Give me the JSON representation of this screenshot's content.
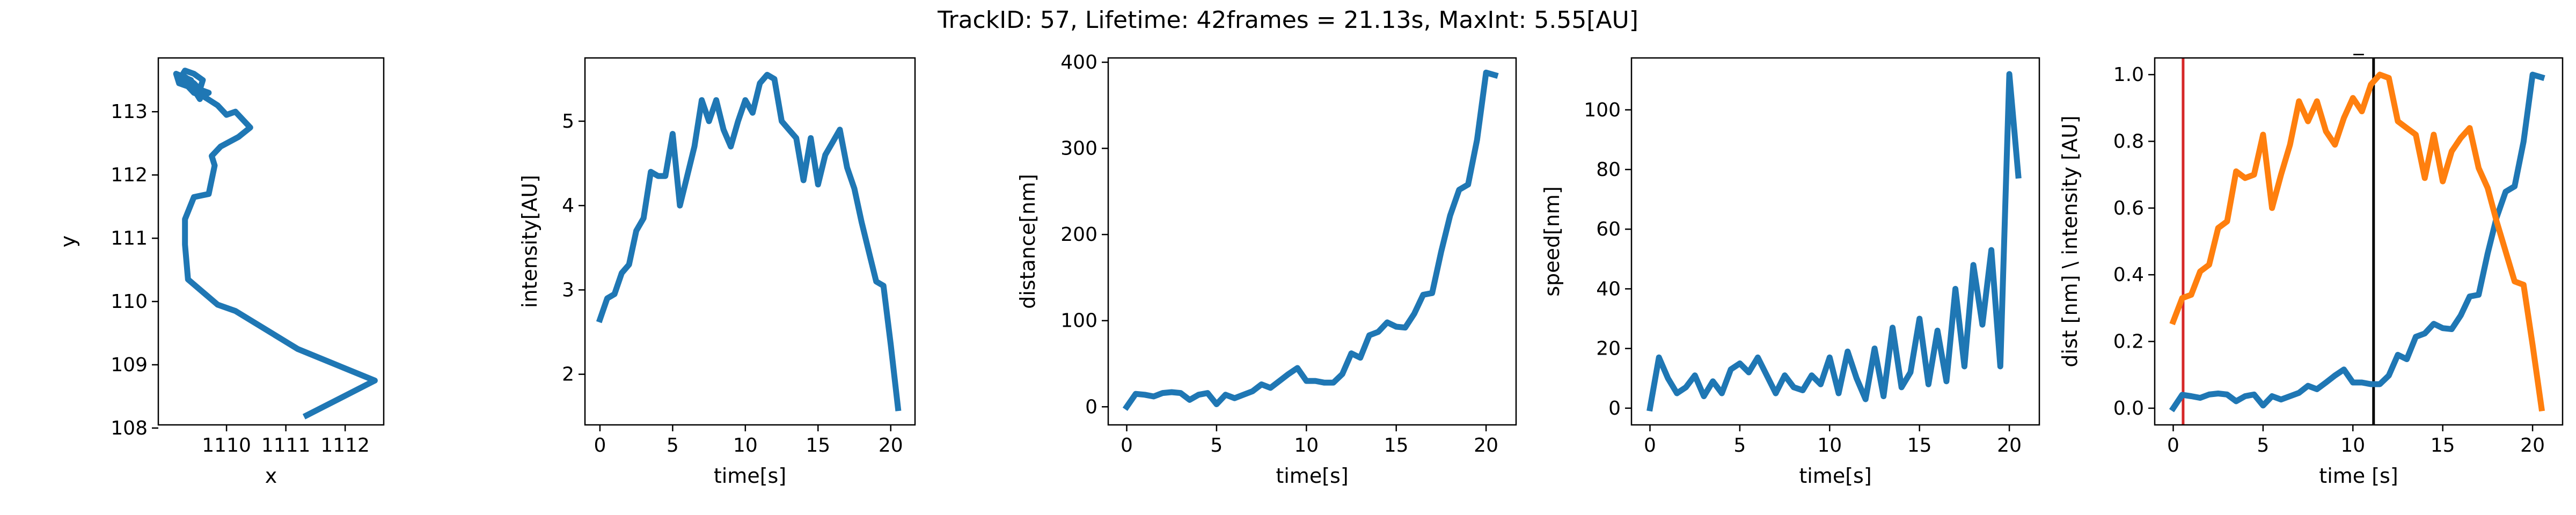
{
  "suptitle": "TrackID: 57, Lifetime: 42frames = 21.13s, MaxInt: 5.55[AU]",
  "colors": {
    "blue": "#1f77b4",
    "orange": "#ff7f0e",
    "red": "#d62728",
    "black": "#000000"
  },
  "chart_data": [
    {
      "type": "line",
      "title": "",
      "xlabel": "x",
      "ylabel": "y",
      "xlim": [
        1108.85,
        1112.65
      ],
      "ylim": [
        108.05,
        113.85
      ],
      "xticks": [
        1110,
        1111,
        1112
      ],
      "xtick_labels": [
        "1110",
        "1111",
        "1112"
      ],
      "yticks": [
        108,
        109,
        110,
        111,
        112,
        113
      ],
      "ytick_labels": [
        "108",
        "109",
        "110",
        "111",
        "112",
        "113"
      ],
      "grid": false,
      "series": [
        {
          "color": "#1f77b4",
          "x": [
            1111.35,
            1112.5,
            1111.2,
            1110.15,
            1109.85,
            1109.35,
            1109.3,
            1109.3,
            1109.45,
            1109.7,
            1109.8,
            1109.75,
            1109.9,
            1110.2,
            1110.4,
            1110.15,
            1110.0,
            1109.85,
            1109.6,
            1109.45,
            1109.35,
            1109.2,
            1109.15,
            1109.4,
            1109.55,
            1109.35,
            1109.25,
            1109.3,
            1109.4,
            1109.5,
            1109.6,
            1109.7,
            1109.4,
            1109.25,
            1109.3,
            1109.45,
            1109.55,
            1109.6,
            1109.45,
            1109.3,
            1109.2,
            1109.25
          ],
          "y": [
            108.2,
            108.75,
            109.25,
            109.85,
            109.95,
            110.35,
            110.9,
            111.3,
            111.65,
            111.7,
            112.15,
            112.3,
            112.45,
            112.6,
            112.75,
            113.0,
            112.95,
            113.1,
            113.25,
            113.3,
            113.4,
            113.45,
            113.6,
            113.5,
            113.2,
            113.5,
            113.55,
            113.45,
            113.35,
            113.3,
            113.25,
            113.3,
            113.4,
            113.5,
            113.55,
            113.45,
            113.35,
            113.5,
            113.6,
            113.65,
            113.5,
            113.45
          ]
        }
      ]
    },
    {
      "type": "line",
      "title": "",
      "xlabel": "time[s]",
      "ylabel": "intensity[AU]",
      "xlim": [
        -1.03,
        21.67
      ],
      "ylim": [
        1.4,
        5.75
      ],
      "xticks": [
        0,
        5,
        10,
        15,
        20
      ],
      "xtick_labels": [
        "0",
        "5",
        "10",
        "15",
        "20"
      ],
      "yticks": [
        2,
        3,
        4,
        5
      ],
      "ytick_labels": [
        "2",
        "3",
        "4",
        "5"
      ],
      "grid": false,
      "series": [
        {
          "color": "#1f77b4",
          "x": [
            0,
            0.5,
            1.0,
            1.5,
            2.0,
            2.5,
            3.0,
            3.5,
            4.0,
            4.5,
            5.0,
            5.5,
            6.0,
            6.5,
            7.0,
            7.5,
            8.0,
            8.5,
            9.0,
            9.5,
            10.0,
            10.5,
            11.0,
            11.5,
            12.0,
            12.5,
            13.0,
            13.5,
            14.0,
            14.5,
            15.0,
            15.5,
            16.0,
            16.5,
            17.0,
            17.5,
            18.0,
            18.5,
            19.0,
            19.5,
            20.0,
            20.5
          ],
          "y": [
            2.65,
            2.9,
            2.95,
            3.2,
            3.3,
            3.7,
            3.85,
            4.4,
            4.35,
            4.35,
            4.85,
            4.0,
            4.35,
            4.7,
            5.25,
            5.0,
            5.25,
            4.9,
            4.7,
            5.0,
            5.25,
            5.1,
            5.45,
            5.55,
            5.5,
            5.0,
            4.9,
            4.8,
            4.3,
            4.8,
            4.25,
            4.6,
            4.75,
            4.9,
            4.45,
            4.2,
            3.8,
            3.45,
            3.1,
            3.05,
            2.35,
            1.6
          ]
        }
      ]
    },
    {
      "type": "line",
      "title": "",
      "xlabel": "time[s]",
      "ylabel": "distance[nm]",
      "xlim": [
        -1.03,
        21.67
      ],
      "ylim": [
        -21,
        405
      ],
      "xticks": [
        0,
        5,
        10,
        15,
        20
      ],
      "xtick_labels": [
        "0",
        "5",
        "10",
        "15",
        "20"
      ],
      "yticks": [
        0,
        100,
        200,
        300,
        400
      ],
      "ytick_labels": [
        "0",
        "100",
        "200",
        "300",
        "400"
      ],
      "grid": false,
      "series": [
        {
          "color": "#1f77b4",
          "x": [
            0,
            0.5,
            1.0,
            1.5,
            2.0,
            2.5,
            3.0,
            3.5,
            4.0,
            4.5,
            5.0,
            5.5,
            6.0,
            6.5,
            7.0,
            7.5,
            8.0,
            8.5,
            9.0,
            9.5,
            10.0,
            10.5,
            11.0,
            11.5,
            12.0,
            12.5,
            13.0,
            13.5,
            14.0,
            14.5,
            15.0,
            15.5,
            16.0,
            16.5,
            17.0,
            17.5,
            18.0,
            18.5,
            19.0,
            19.5,
            20.0,
            20.5
          ],
          "y": [
            0,
            15,
            14,
            12,
            16,
            17,
            16,
            8,
            14,
            16,
            3,
            14,
            10,
            14,
            18,
            26,
            22,
            30,
            38,
            45,
            30,
            30,
            28,
            28,
            38,
            62,
            57,
            83,
            87,
            98,
            93,
            92,
            108,
            130,
            132,
            180,
            222,
            252,
            258,
            310,
            388,
            385
          ]
        }
      ]
    },
    {
      "type": "line",
      "title": "",
      "xlabel": "time[s]",
      "ylabel": "speed[nm]",
      "xlim": [
        -1.03,
        21.67
      ],
      "ylim": [
        -5.6,
        117.4
      ],
      "xticks": [
        0,
        5,
        10,
        15,
        20
      ],
      "xtick_labels": [
        "0",
        "5",
        "10",
        "15",
        "20"
      ],
      "yticks": [
        0,
        20,
        40,
        60,
        80,
        100
      ],
      "ytick_labels": [
        "0",
        "20",
        "40",
        "60",
        "80",
        "100"
      ],
      "grid": false,
      "series": [
        {
          "color": "#1f77b4",
          "x": [
            0,
            0.5,
            1.0,
            1.5,
            2.0,
            2.5,
            3.0,
            3.5,
            4.0,
            4.5,
            5.0,
            5.5,
            6.0,
            6.5,
            7.0,
            7.5,
            8.0,
            8.5,
            9.0,
            9.5,
            10.0,
            10.5,
            11.0,
            11.5,
            12.0,
            12.5,
            13.0,
            13.5,
            14.0,
            14.5,
            15.0,
            15.5,
            16.0,
            16.5,
            17.0,
            17.5,
            18.0,
            18.5,
            19.0,
            19.5,
            20.0,
            20.5
          ],
          "y": [
            0,
            17,
            10,
            5,
            7,
            11,
            4,
            9,
            5,
            13,
            15,
            12,
            17,
            11,
            5,
            11,
            7,
            6,
            11,
            8,
            17,
            5,
            19,
            10,
            3,
            20,
            4,
            27,
            7,
            12,
            30,
            8,
            26,
            9,
            40,
            14,
            48,
            28,
            53,
            14,
            112,
            78
          ]
        }
      ]
    },
    {
      "type": "line",
      "title": "_",
      "xlabel": "time [s]",
      "ylabel": "dist [nm] \\ intensity [AU]",
      "xlim": [
        -1.03,
        21.67
      ],
      "ylim": [
        -0.05,
        1.05
      ],
      "xticks": [
        0,
        5,
        10,
        15,
        20
      ],
      "xtick_labels": [
        "0",
        "5",
        "10",
        "15",
        "20"
      ],
      "yticks": [
        0,
        0.2,
        0.4,
        0.6,
        0.8,
        1.0
      ],
      "ytick_labels": [
        "0.0",
        "0.2",
        "0.4",
        "0.6",
        "0.8",
        "1.0"
      ],
      "grid": false,
      "vlines": [
        {
          "x": 0.55,
          "color": "#d62728"
        },
        {
          "x": 11.15,
          "color": "#000000"
        }
      ],
      "series": [
        {
          "color": "#1f77b4",
          "x": [
            0,
            0.5,
            1.0,
            1.5,
            2.0,
            2.5,
            3.0,
            3.5,
            4.0,
            4.5,
            5.0,
            5.5,
            6.0,
            6.5,
            7.0,
            7.5,
            8.0,
            8.5,
            9.0,
            9.5,
            10.0,
            10.5,
            11.0,
            11.5,
            12.0,
            12.5,
            13.0,
            13.5,
            14.0,
            14.5,
            15.0,
            15.5,
            16.0,
            16.5,
            17.0,
            17.5,
            18.0,
            18.5,
            19.0,
            19.5,
            20.0,
            20.5
          ],
          "y": [
            0.0,
            0.04,
            0.036,
            0.031,
            0.041,
            0.044,
            0.041,
            0.021,
            0.036,
            0.041,
            0.008,
            0.036,
            0.026,
            0.036,
            0.046,
            0.067,
            0.057,
            0.077,
            0.098,
            0.116,
            0.077,
            0.077,
            0.072,
            0.072,
            0.098,
            0.16,
            0.147,
            0.214,
            0.224,
            0.253,
            0.24,
            0.237,
            0.278,
            0.335,
            0.34,
            0.464,
            0.572,
            0.649,
            0.665,
            0.799,
            1.0,
            0.992
          ]
        },
        {
          "color": "#ff7f0e",
          "x": [
            0,
            0.5,
            1.0,
            1.5,
            2.0,
            2.5,
            3.0,
            3.5,
            4.0,
            4.5,
            5.0,
            5.5,
            6.0,
            6.5,
            7.0,
            7.5,
            8.0,
            8.5,
            9.0,
            9.5,
            10.0,
            10.5,
            11.0,
            11.5,
            12.0,
            12.5,
            13.0,
            13.5,
            14.0,
            14.5,
            15.0,
            15.5,
            16.0,
            16.5,
            17.0,
            17.5,
            18.0,
            18.5,
            19.0,
            19.5,
            20.0,
            20.5
          ],
          "y": [
            0.26,
            0.33,
            0.34,
            0.41,
            0.43,
            0.54,
            0.56,
            0.71,
            0.69,
            0.7,
            0.82,
            0.6,
            0.7,
            0.79,
            0.92,
            0.86,
            0.92,
            0.83,
            0.79,
            0.87,
            0.93,
            0.89,
            0.97,
            1.0,
            0.99,
            0.86,
            0.84,
            0.82,
            0.69,
            0.82,
            0.68,
            0.77,
            0.81,
            0.84,
            0.72,
            0.66,
            0.56,
            0.47,
            0.38,
            0.37,
            0.19,
            0.0
          ]
        }
      ]
    }
  ]
}
